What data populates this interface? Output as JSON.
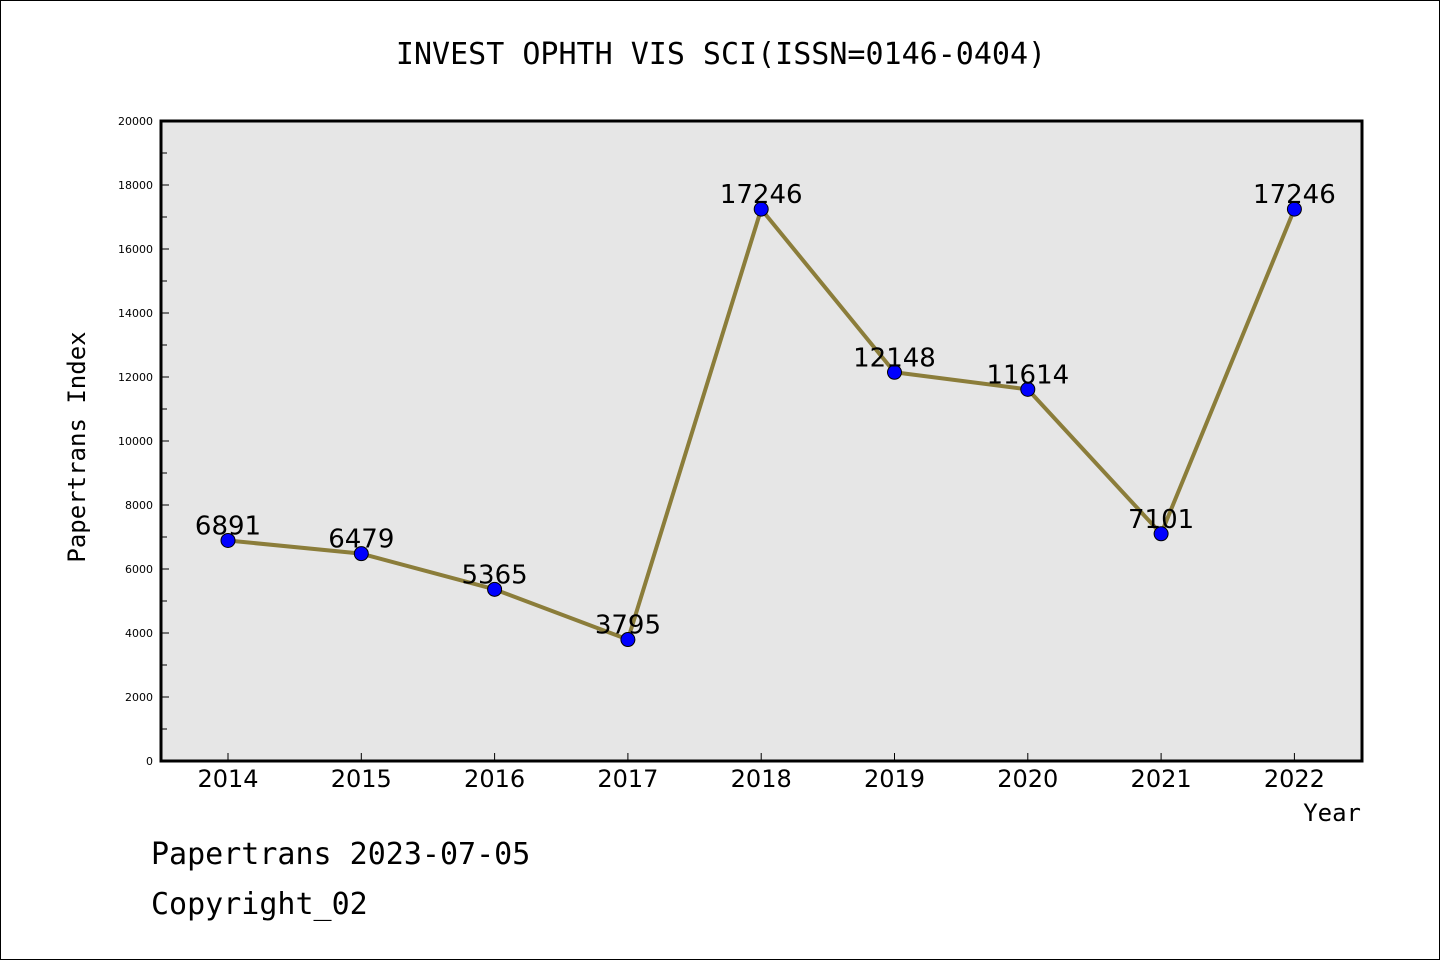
{
  "chart_data": {
    "type": "line",
    "title": "INVEST OPHTH VIS SCI(ISSN=0146-0404)",
    "xlabel": "Year",
    "ylabel": "Papertrans Index",
    "categories": [
      "2014",
      "2015",
      "2016",
      "2017",
      "2018",
      "2019",
      "2020",
      "2021",
      "2022"
    ],
    "series": [
      {
        "values": [
          6891,
          6479,
          5365,
          3795,
          17246,
          12148,
          11614,
          7101,
          17246
        ],
        "line_color": "#8B7D3A",
        "marker_color": "#0000FF"
      }
    ],
    "ylim": [
      0,
      20000
    ],
    "yticks": [
      0,
      2000,
      4000,
      6000,
      8000,
      10000,
      12000,
      14000,
      16000,
      18000,
      20000
    ],
    "plot_background": "#E6E6E6",
    "grid": false,
    "legend": "none"
  },
  "footer": {
    "date_text": "Papertrans 2023-07-05",
    "copyright_text": "Copyright_02"
  }
}
